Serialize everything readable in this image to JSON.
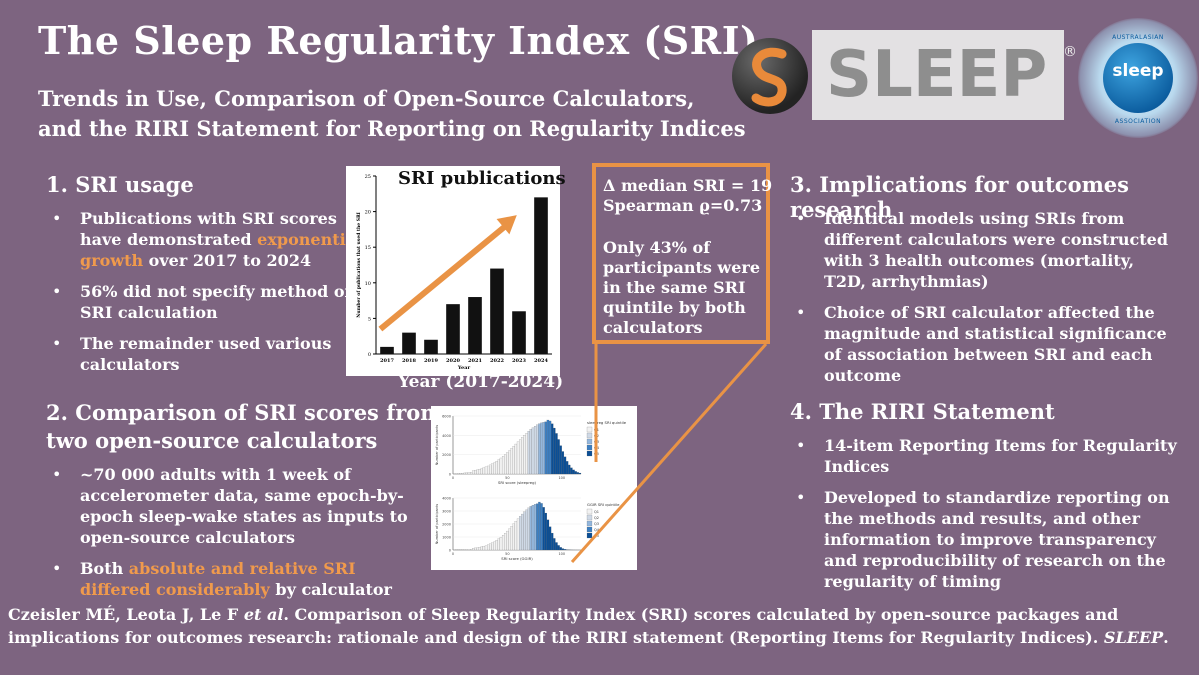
{
  "title": "The Sleep Regularity Index (SRI)",
  "subtitle_line1": "Trends in Use, Comparison of Open-Source Calculators,",
  "subtitle_line2": "and the RIRI Statement for Reporting on Regularity Indices",
  "logo": {
    "word": "SLEEP",
    "reg": "®",
    "assoc_top": "AUSTRALASIAN",
    "assoc_word": "sleep",
    "assoc_bottom": "ASSOCIATION"
  },
  "section1": {
    "heading": "1. SRI usage",
    "b1_pre": "Publications with SRI scores have demonstrated ",
    "b1_hl": "exponential growth",
    "b1_post": " over 2017 to 2024",
    "b2": "56% did not specify method of SRI calculation",
    "b3": "The remainder used various calculators"
  },
  "section2": {
    "heading_line1": "2. Comparison of SRI scores from",
    "heading_line2": "two open-source calculators",
    "b1": "~70 000 adults with 1 week of accelerometer data, same epoch-by-epoch sleep-wake states as inputs to open-source calculators",
    "b2_pre": "Both ",
    "b2_hl": "absolute and relative SRI differed considerably",
    "b2_post": " by calculator"
  },
  "section3": {
    "heading": "3. Implications for outcomes research",
    "b1": "Identical models using SRIs from different calculators were constructed with 3 health outcomes (mortality, T2D, arrhythmias)",
    "b2": "Choice of SRI calculator affected the magnitude and statistical significance of association between SRI and each outcome"
  },
  "section4": {
    "heading": "4. The RIRI Statement",
    "b1": "14-item Reporting Items for Regularity Indices",
    "b2": "Developed to standardize reporting on the methods and results, and other information to improve transparency and reproducibility of research on the regularity of timing"
  },
  "callout": {
    "line1": "Δ median SRI = 19",
    "line2": "Spearman ϱ=0.73",
    "line3": "Only 43% of",
    "line4": "participants were",
    "line5": "in the same SRI",
    "line6": "quintile by both",
    "line7": "calculators"
  },
  "chart_data": {
    "type": "bar",
    "title": "SRI publications",
    "caption": "Year (2017-2024)",
    "xlabel": "Year",
    "ylabel": "Number of publications that used the SRI",
    "categories": [
      "2017",
      "2018",
      "2019",
      "2020",
      "2021",
      "2022",
      "2023",
      "2024"
    ],
    "values": [
      1,
      3,
      2,
      7,
      8,
      12,
      6,
      22
    ],
    "yticks": [
      0,
      5,
      10,
      15,
      20,
      25
    ],
    "ylim": [
      0,
      25
    ],
    "bar_color": "#111111",
    "trend_color": "#e99345"
  },
  "dist_chart": {
    "top": {
      "xlabel": "SRI score (sleepreg)",
      "ylabel": "Number of participants",
      "legend_title": "sleepreg SRI quintile",
      "yticks": [
        "6000",
        "4000",
        "2000",
        "0"
      ],
      "xticks": [
        "0",
        "50",
        "100"
      ]
    },
    "bottom": {
      "xlabel": "SRI score (GGIR)",
      "ylabel": "Number of participants",
      "legend_title": "GGIR SRI quintile",
      "yticks": [
        "4000",
        "3000",
        "2000",
        "1000",
        "0"
      ],
      "xticks": [
        "0",
        "50",
        "100"
      ]
    },
    "legend_items": [
      "Q1",
      "Q2",
      "Q3",
      "Q4",
      "Q5"
    ],
    "quintile_colors": [
      "#f2f2f2",
      "#cfd9e6",
      "#93b6dc",
      "#3c7fc2",
      "#0b4f96"
    ]
  },
  "footer": {
    "authors": "Czeisler MÉ, Leota J, Le F ",
    "etal": "et al",
    "text": ". Comparison of Sleep Regularity Index (SRI) scores calculated by open-source packages and implications for outcomes research: rationale and design of the RIRI statement (Reporting Items for Regularity Indices). ",
    "journal": "SLEEP",
    "end": "."
  },
  "colors": {
    "background": "#7d6480",
    "accent": "#e99345",
    "text": "#ffffff"
  }
}
